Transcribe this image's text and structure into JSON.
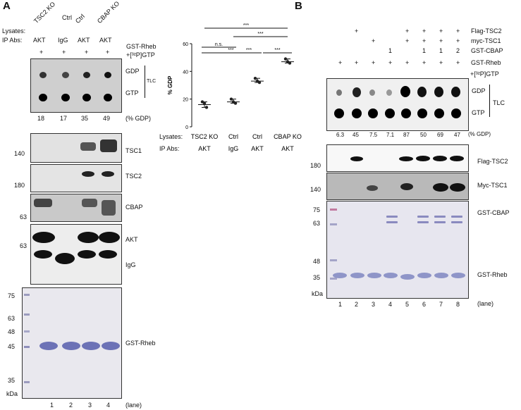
{
  "panel_a": {
    "letter": "A",
    "lysates_label": "Lysates:",
    "ipabs_label": "IP Abs:",
    "lysates": [
      "TSC2 KO",
      "Ctrl",
      "Ctrl",
      "CBAP KO"
    ],
    "ipabs": [
      "AKT",
      "IgG",
      "AKT",
      "AKT"
    ],
    "gst_rheb_label": "GST-Rheb",
    "gtp_label": "+[³²P]GTP",
    "plus": [
      "+",
      "+",
      "+",
      "+"
    ],
    "tlc_gdp": "GDP",
    "tlc_gtp": "GTP",
    "tlc_label": "TLC",
    "pct_values": [
      "18",
      "17",
      "35",
      "49"
    ],
    "pct_label": "(% GDP)",
    "blots": {
      "tsc1": {
        "label": "TSC1",
        "marker": "140"
      },
      "tsc2": {
        "label": "TSC2",
        "marker": "180"
      },
      "cbap": {
        "label": "CBAP",
        "marker": "63"
      },
      "akt": {
        "label": "AKT",
        "marker": "63"
      },
      "igg": {
        "label": "IgG"
      }
    },
    "gel": {
      "label": "GST-Rheb",
      "markers": [
        "75",
        "63",
        "48",
        "45",
        "35",
        "kDa"
      ]
    },
    "lanes": [
      "1",
      "2",
      "3",
      "4"
    ],
    "lane_label": "(lane)"
  },
  "chart_data": {
    "type": "scatter",
    "ylabel": "% GDP",
    "ylim": [
      0,
      60
    ],
    "yticks": [
      "0",
      "20",
      "40",
      "60"
    ],
    "groups": [
      {
        "lysate": "TSC2 KO",
        "ipab": "AKT",
        "mean": 16,
        "points": [
          18,
          17,
          14
        ]
      },
      {
        "lysate": "Ctrl",
        "ipab": "IgG",
        "mean": 18,
        "points": [
          20,
          18,
          17
        ]
      },
      {
        "lysate": "Ctrl",
        "ipab": "AKT",
        "mean": 33,
        "points": [
          35,
          33,
          32
        ]
      },
      {
        "lysate": "CBAP KO",
        "ipab": "AKT",
        "mean": 47,
        "points": [
          49,
          47,
          46
        ]
      }
    ],
    "lysates_label": "Lysates:",
    "ipabs_label": "IP Abs:",
    "significance": [
      {
        "from": 0,
        "to": 3,
        "label": "***"
      },
      {
        "from": 1,
        "to": 3,
        "label": "***"
      },
      {
        "from": 0,
        "to": 1,
        "label": "n.s."
      },
      {
        "from": 0,
        "to": 2,
        "label": "***"
      },
      {
        "from": 1,
        "to": 2,
        "label": "***"
      },
      {
        "from": 2,
        "to": 3,
        "label": "***"
      }
    ]
  },
  "panel_b": {
    "letter": "B",
    "rows": [
      {
        "label": "Flag-TSC2",
        "cells": [
          "",
          "+",
          "",
          "",
          "+",
          "+",
          "+",
          "+"
        ]
      },
      {
        "label": "myc-TSC1",
        "cells": [
          "",
          "",
          "+",
          "",
          "+",
          "+",
          "+",
          "+"
        ]
      },
      {
        "label": "GST-CBAP",
        "cells": [
          "",
          "",
          "",
          "1",
          "",
          "1",
          "1",
          "2"
        ]
      },
      {
        "label": "GST-Rheb",
        "cells": [
          "+",
          "+",
          "+",
          "+",
          "+",
          "+",
          "+",
          "+"
        ]
      }
    ],
    "gtp_label": "+[³²P]GTP",
    "tlc_gdp": "GDP",
    "tlc_gtp": "GTP",
    "tlc_label": "TLC",
    "pct_values": [
      "6.3",
      "45",
      "7.5",
      "7.1",
      "87",
      "50",
      "69",
      "47"
    ],
    "pct_label": "(% GDP)",
    "flag_tsc2": {
      "label": "Flag-TSC2",
      "marker": "180"
    },
    "myc_tsc1": {
      "label": "Myc-TSC1",
      "marker": "140"
    },
    "gel": {
      "label_cbap": "GST-CBAP",
      "label_rheb": "GST-Rheb",
      "markers": [
        "75",
        "63",
        "48",
        "35",
        "kDa"
      ]
    },
    "lanes": [
      "1",
      "2",
      "3",
      "4",
      "5",
      "6",
      "7",
      "8"
    ],
    "lane_label": "(lane)"
  }
}
